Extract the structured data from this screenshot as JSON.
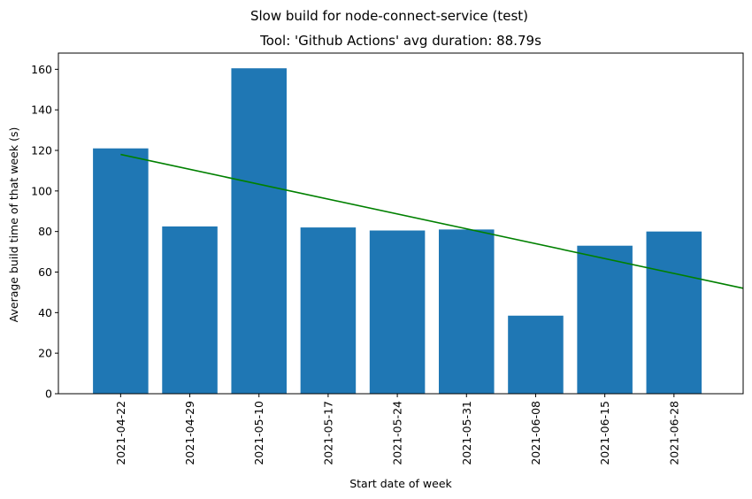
{
  "chart_data": {
    "type": "bar",
    "suptitle": "Slow build for node-connect-service (test)",
    "title": "Tool: 'Github Actions' avg duration: 88.79s",
    "xlabel": "Start date of week",
    "ylabel": "Average build time of that week (s)",
    "categories": [
      "2021-04-22",
      "2021-04-29",
      "2021-05-10",
      "2021-05-17",
      "2021-05-24",
      "2021-05-31",
      "2021-06-08",
      "2021-06-15",
      "2021-06-28"
    ],
    "series": [
      {
        "values": [
          121,
          82.5,
          160.5,
          82,
          80.5,
          81,
          38.5,
          73,
          80
        ],
        "color": "#1f77b4"
      }
    ],
    "trendline": {
      "color": "#008000",
      "start": 118,
      "end": 52,
      "end_position": 9
    },
    "ylim": [
      0,
      168
    ],
    "yticks": [
      0,
      20,
      40,
      60,
      80,
      100,
      120,
      140,
      160
    ],
    "grid": false,
    "legend": "none"
  }
}
